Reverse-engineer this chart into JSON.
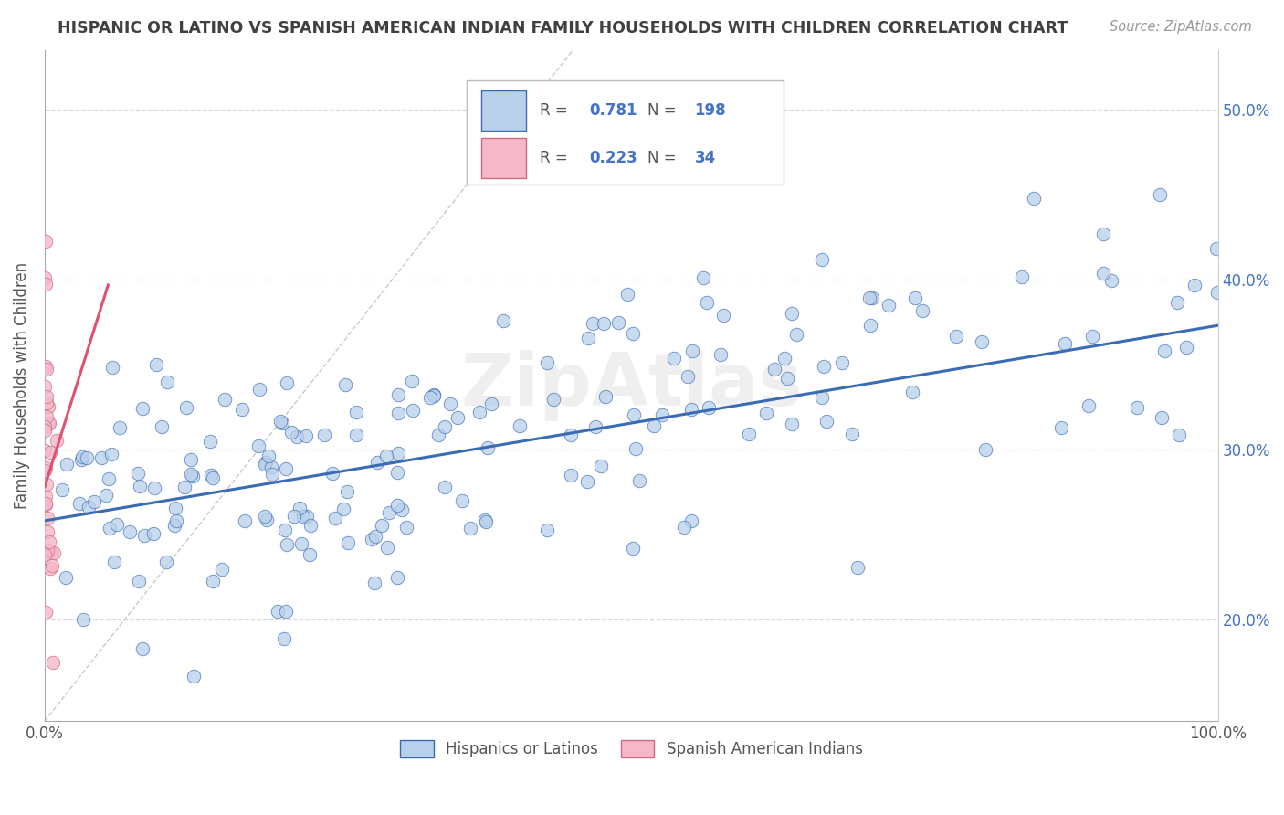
{
  "title": "HISPANIC OR LATINO VS SPANISH AMERICAN INDIAN FAMILY HOUSEHOLDS WITH CHILDREN CORRELATION CHART",
  "source": "Source: ZipAtlas.com",
  "ylabel_label": "Family Households with Children",
  "watermark": "ZipAtlas",
  "background_color": "#ffffff",
  "grid_color": "#d8d8d8",
  "scatter_blue_color": "#b8d0ea",
  "scatter_pink_color": "#f5b8c8",
  "line_blue_color": "#3a6bb5",
  "line_pink_color": "#e05070",
  "title_color": "#404040",
  "axis_label_color": "#555555",
  "legend_text_color": "#4472c4",
  "legend_value_color": "#e05070",
  "xmin": 0.0,
  "xmax": 1.0,
  "ymin": 0.14,
  "ymax": 0.535,
  "blue_intercept": 0.258,
  "blue_slope": 0.115,
  "pink_intercept": 0.278,
  "pink_slope": 2.2,
  "seed_blue": 12,
  "seed_pink": 55,
  "blue_N": 198,
  "pink_N": 34,
  "y_ticks": [
    0.2,
    0.3,
    0.4,
    0.5
  ],
  "y_tick_labels": [
    "20.0%",
    "30.0%",
    "40.0%",
    "50.0%"
  ]
}
